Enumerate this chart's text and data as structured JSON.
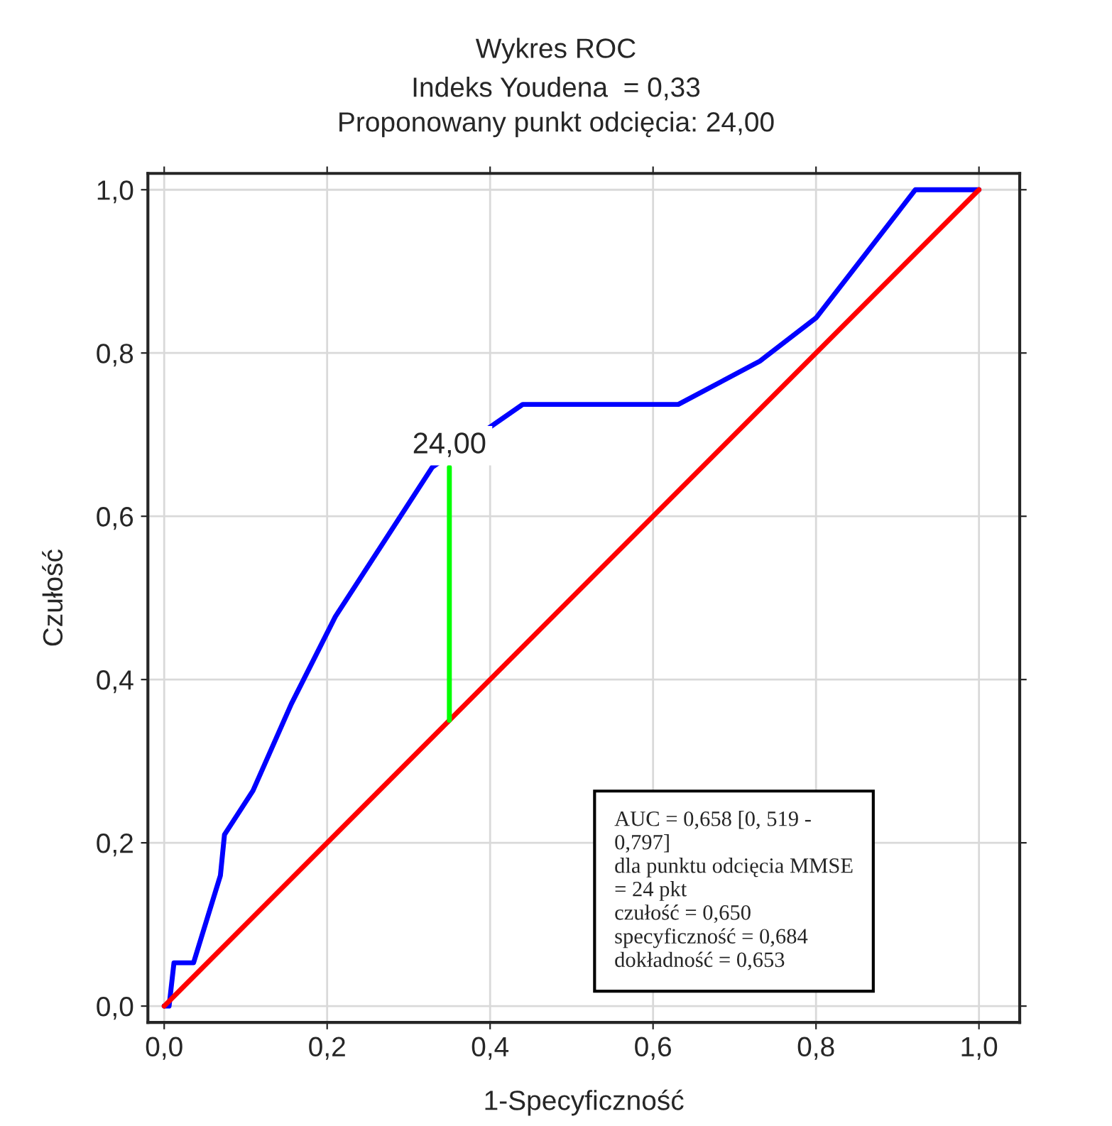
{
  "chart_data": {
    "type": "line",
    "title": "Wykres ROC",
    "subtitle": "Indeks Youdena  = 0,33\nProponowany punkt odcięcia: 24,00",
    "xlabel": "1-Specyficzność",
    "ylabel": "Czułość",
    "series": [
      {
        "color": "#0000ff",
        "x": [
          0.0,
          0.006,
          0.012,
          0.036,
          0.069,
          0.074,
          0.109,
          0.156,
          0.21,
          0.329,
          0.44,
          0.631,
          0.731,
          0.8,
          0.922,
          1.0
        ],
        "values": [
          0.0,
          0.0,
          0.053,
          0.053,
          0.16,
          0.21,
          0.264,
          0.37,
          0.477,
          0.66,
          0.737,
          0.737,
          0.79,
          0.843,
          1.0,
          1.0
        ]
      },
      {
        "color": "#ff0000",
        "x": [
          0.0,
          1.0
        ],
        "values": [
          0.0,
          1.0
        ]
      },
      {
        "color": "#00ff00",
        "x": [
          0.35,
          0.35
        ],
        "values": [
          0.35,
          0.66
        ]
      }
    ],
    "annotations": [
      {
        "text": "24,00",
        "x": 0.35,
        "y": 0.66
      },
      "AUC = 0,658 [0, 519 -\n0,797]\ndla punktu odcięcia MMSE\n= 24 pkt\nczułość = 0,650\nspecyficzność = 0,684\ndokładność = 0,653"
    ],
    "xlim": [
      -0.02,
      1.05
    ],
    "ylim": [
      -0.02,
      1.02
    ],
    "xticks": [
      {
        "value": 0.0,
        "label": "0,0"
      },
      {
        "value": 0.2,
        "label": "0,2"
      },
      {
        "value": 0.4,
        "label": "0,4"
      },
      {
        "value": 0.6,
        "label": "0,6"
      },
      {
        "value": 0.8,
        "label": "0,8"
      },
      {
        "value": 1.0,
        "label": "1,0"
      }
    ],
    "yticks": [
      {
        "value": 0.0,
        "label": "0,0"
      },
      {
        "value": 0.2,
        "label": "0,2"
      },
      {
        "value": 0.4,
        "label": "0,4"
      },
      {
        "value": 0.6,
        "label": "0,6"
      },
      {
        "value": 0.8,
        "label": "0,8"
      },
      {
        "value": 1.0,
        "label": "1,0"
      }
    ],
    "grid": true,
    "line_style": "solid",
    "marker": "none"
  }
}
